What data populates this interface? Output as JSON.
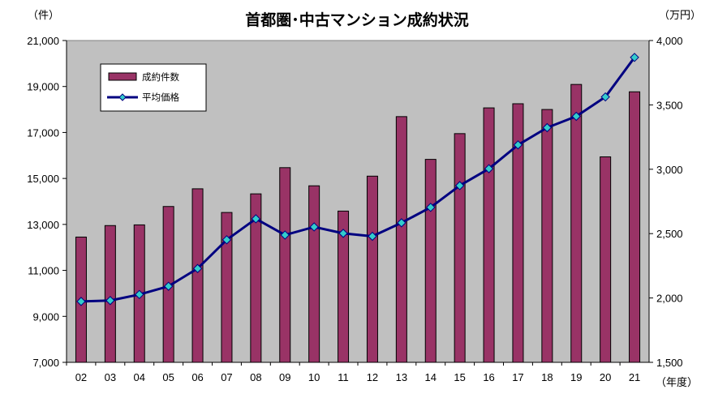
{
  "chart_data": {
    "type": "bar",
    "title": "首都圏･中古マンション成約状況",
    "y_left_unit": "（件）",
    "y_right_unit": "（万円）",
    "x_unit": "（年度）",
    "categories": [
      "02",
      "03",
      "04",
      "05",
      "06",
      "07",
      "08",
      "09",
      "10",
      "11",
      "12",
      "13",
      "14",
      "15",
      "16",
      "17",
      "18",
      "19",
      "20",
      "21"
    ],
    "y_left_ticks": [
      "7,000",
      "9,000",
      "11,000",
      "13,000",
      "15,000",
      "17,000",
      "19,000",
      "21,000"
    ],
    "y_right_ticks": [
      "1,500",
      "2,000",
      "2,500",
      "3,000",
      "3,500",
      "4,000"
    ],
    "ylim_left": [
      7000,
      21000
    ],
    "ylim_right": [
      1500,
      4000
    ],
    "grid": false,
    "legend_position": "top-left",
    "series": [
      {
        "name": "成約件数",
        "type": "bar",
        "axis": "left",
        "color": "#993366",
        "values": [
          12450,
          12950,
          12980,
          13780,
          14550,
          13520,
          14330,
          15470,
          14680,
          13580,
          15100,
          17690,
          15830,
          16950,
          18070,
          18250,
          18000,
          19090,
          15940,
          18770
        ]
      },
      {
        "name": "平均価格",
        "type": "line",
        "axis": "right",
        "color": "#000080",
        "marker_color": "#33CCCC",
        "values": [
          1973,
          1980,
          2027,
          2091,
          2229,
          2452,
          2615,
          2489,
          2552,
          2502,
          2479,
          2584,
          2704,
          2873,
          3004,
          3189,
          3323,
          3411,
          3562,
          3869
        ]
      }
    ]
  }
}
